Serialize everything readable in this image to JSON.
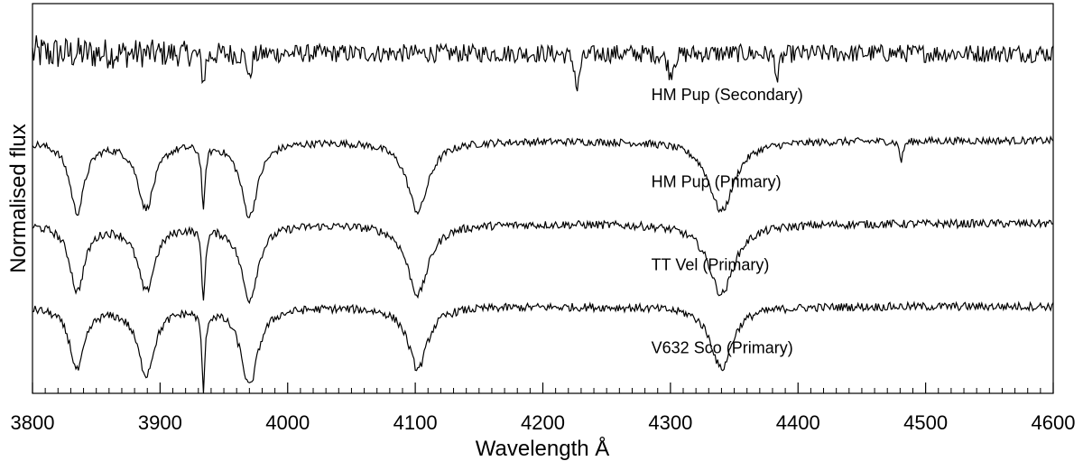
{
  "chart_data": {
    "type": "line",
    "title": "",
    "xlabel": "Wavelength Å",
    "ylabel": "Normalised flux",
    "xlim": [
      3800,
      4600
    ],
    "x_ticks": [
      3800,
      3900,
      4000,
      4100,
      4200,
      4300,
      4400,
      4500,
      4600
    ],
    "x_minor_step": 10,
    "grid": false,
    "legend": "inline-right",
    "colors": {
      "line": "#000000",
      "axis": "#000000",
      "background": "#ffffff"
    },
    "absorption_lines_angstrom": [
      3835,
      3889,
      3934,
      3970,
      4102,
      4227,
      4340,
      4384,
      4481
    ],
    "series": [
      {
        "name": "HM Pup (Secondary)",
        "continuum_offset": 3.6,
        "noise_level": 0.11,
        "noise_level_blue": 0.22,
        "features": [
          {
            "center": 3934,
            "depth": 0.35,
            "width": 1.5
          },
          {
            "center": 3970,
            "depth": 0.35,
            "width": 1.5
          },
          {
            "center": 4227,
            "depth": 0.45,
            "width": 2.0
          },
          {
            "center": 4300,
            "depth": 0.25,
            "width": 2.5
          },
          {
            "center": 4384,
            "depth": 0.35,
            "width": 1.5
          }
        ]
      },
      {
        "name": "HM Pup (Primary)",
        "continuum_offset": 2.55,
        "noise_level": 0.045,
        "noise_level_blue": 0.045,
        "features": [
          {
            "center": 3835,
            "depth": 0.85,
            "width": 7
          },
          {
            "center": 3889,
            "depth": 0.8,
            "width": 8
          },
          {
            "center": 3934,
            "depth": 0.8,
            "width": 1.5
          },
          {
            "center": 3970,
            "depth": 0.9,
            "width": 8
          },
          {
            "center": 4102,
            "depth": 0.85,
            "width": 10
          },
          {
            "center": 4340,
            "depth": 0.85,
            "width": 12
          },
          {
            "center": 4481,
            "depth": 0.25,
            "width": 1.5
          }
        ]
      },
      {
        "name": "TT Vel (Primary)",
        "continuum_offset": 1.55,
        "noise_level": 0.05,
        "noise_level_blue": 0.05,
        "features": [
          {
            "center": 3835,
            "depth": 0.8,
            "width": 7
          },
          {
            "center": 3889,
            "depth": 0.8,
            "width": 8
          },
          {
            "center": 3934,
            "depth": 0.9,
            "width": 1.5
          },
          {
            "center": 3970,
            "depth": 0.9,
            "width": 8
          },
          {
            "center": 4102,
            "depth": 0.85,
            "width": 10
          },
          {
            "center": 4340,
            "depth": 0.85,
            "width": 12
          }
        ]
      },
      {
        "name": "V632 Sco (Primary)",
        "continuum_offset": 0.55,
        "noise_level": 0.05,
        "noise_level_blue": 0.05,
        "features": [
          {
            "center": 3835,
            "depth": 0.75,
            "width": 7
          },
          {
            "center": 3889,
            "depth": 0.8,
            "width": 8
          },
          {
            "center": 3934,
            "depth": 0.95,
            "width": 1.5
          },
          {
            "center": 3970,
            "depth": 0.95,
            "width": 8
          },
          {
            "center": 4102,
            "depth": 0.75,
            "width": 9
          },
          {
            "center": 4340,
            "depth": 0.75,
            "width": 10
          }
        ]
      }
    ],
    "ylim": [
      -0.5,
      4.2
    ]
  }
}
